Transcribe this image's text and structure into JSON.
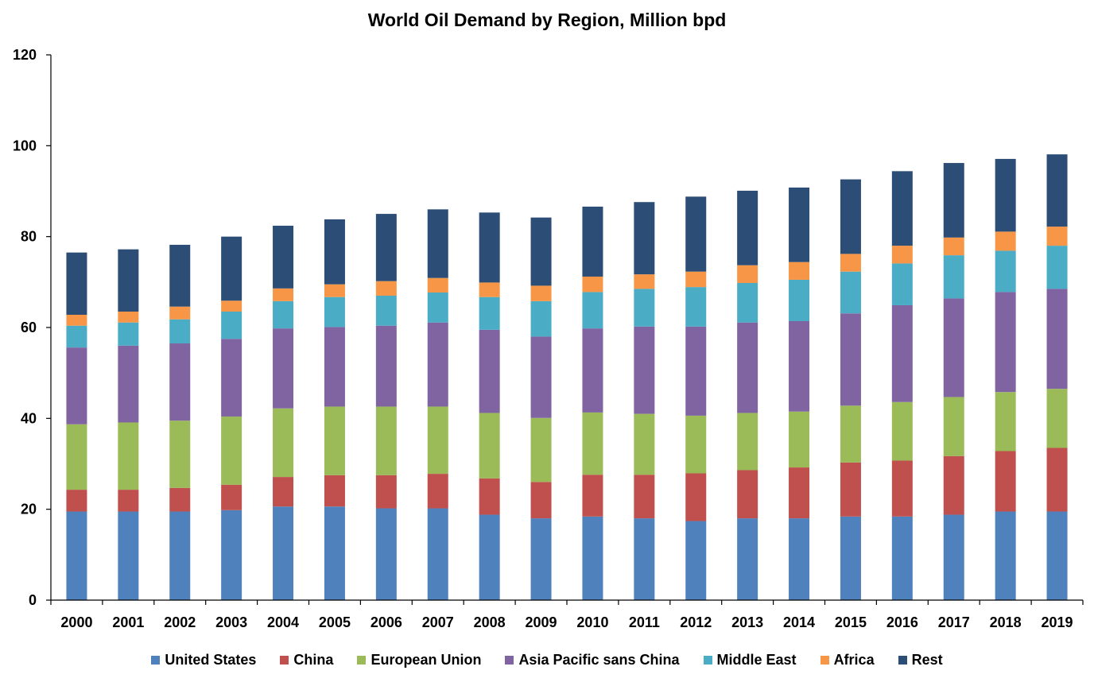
{
  "chart_data": {
    "type": "bar",
    "stacked": true,
    "title": "World Oil Demand by Region, Million bpd",
    "xlabel": "",
    "ylabel": "",
    "ylim": [
      0,
      120
    ],
    "yticks": [
      0,
      20,
      40,
      60,
      80,
      100,
      120
    ],
    "grid": false,
    "legend": "bottom",
    "categories": [
      "2000",
      "2001",
      "2002",
      "2003",
      "2004",
      "2005",
      "2006",
      "2007",
      "2008",
      "2009",
      "2010",
      "2011",
      "2012",
      "2013",
      "2014",
      "2015",
      "2016",
      "2017",
      "2018",
      "2019"
    ],
    "series": [
      {
        "name": "United States",
        "color": "#4f81bd",
        "values": [
          19.5,
          19.5,
          19.5,
          19.8,
          20.6,
          20.6,
          20.2,
          20.2,
          18.8,
          18.0,
          18.4,
          18.0,
          17.4,
          18.0,
          18.0,
          18.4,
          18.4,
          18.8,
          19.5,
          19.5
        ]
      },
      {
        "name": "China",
        "color": "#c0504d",
        "values": [
          4.8,
          4.8,
          5.2,
          5.6,
          6.5,
          6.9,
          7.3,
          7.6,
          8.0,
          8.0,
          9.2,
          9.6,
          10.5,
          10.6,
          11.2,
          11.9,
          12.3,
          12.9,
          13.3,
          14.0
        ]
      },
      {
        "name": "European Union",
        "color": "#9bbb59",
        "values": [
          14.4,
          14.8,
          14.8,
          15.0,
          15.1,
          15.1,
          15.1,
          14.8,
          14.4,
          14.1,
          13.7,
          13.4,
          12.7,
          12.6,
          12.3,
          12.5,
          12.9,
          13.0,
          13.0,
          13.0
        ]
      },
      {
        "name": "Asia Pacific sans China",
        "color": "#8064a2",
        "values": [
          16.9,
          16.9,
          17.0,
          17.1,
          17.6,
          17.5,
          17.8,
          18.5,
          18.3,
          17.9,
          18.5,
          19.2,
          19.6,
          19.9,
          19.9,
          20.3,
          21.3,
          21.7,
          22.0,
          22.0
        ]
      },
      {
        "name": "Middle East",
        "color": "#4bacc6",
        "values": [
          4.8,
          5.1,
          5.3,
          6.0,
          6.0,
          6.6,
          6.6,
          6.6,
          7.2,
          7.8,
          8.0,
          8.3,
          8.7,
          8.7,
          9.1,
          9.2,
          9.2,
          9.5,
          9.1,
          9.5
        ]
      },
      {
        "name": "Africa",
        "color": "#f79646",
        "values": [
          2.4,
          2.4,
          2.8,
          2.4,
          2.8,
          2.8,
          3.2,
          3.2,
          3.2,
          3.4,
          3.4,
          3.2,
          3.4,
          3.9,
          3.9,
          3.9,
          3.9,
          3.9,
          4.2,
          4.2
        ]
      },
      {
        "name": "Rest",
        "color": "#2c4d75",
        "values": [
          13.7,
          13.7,
          13.6,
          14.1,
          13.8,
          14.3,
          14.8,
          15.1,
          15.4,
          15.0,
          15.4,
          15.9,
          16.5,
          16.4,
          16.4,
          16.4,
          16.4,
          16.4,
          16.0,
          15.9
        ]
      }
    ]
  }
}
